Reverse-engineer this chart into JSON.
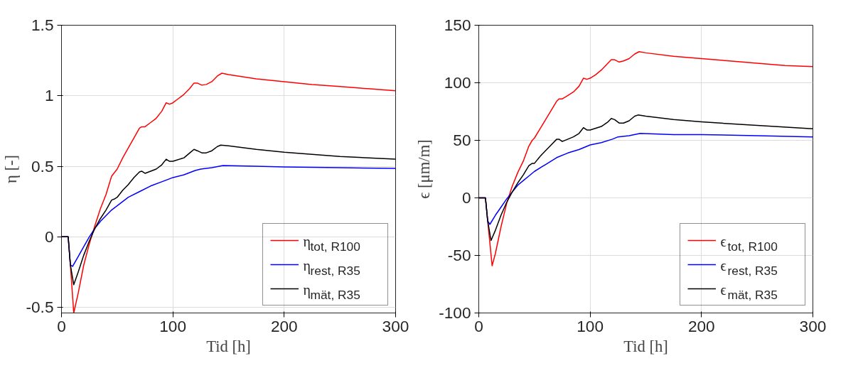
{
  "chart_data": [
    {
      "type": "line",
      "xlabel": "Tid [h]",
      "ylabel": "η [-]",
      "xlim": [
        0,
        300
      ],
      "ylim": [
        -0.54,
        1.5
      ],
      "xticks": [
        0,
        100,
        200,
        300
      ],
      "yticks": [
        -0.5,
        0,
        0.5,
        1,
        1.5
      ],
      "grid": true,
      "legend": "bottom right",
      "series": [
        {
          "name": "η$_{tot, R100}$",
          "color": "#ff0000",
          "x": [
            0,
            6,
            8,
            11,
            15,
            20,
            25,
            30,
            35,
            40,
            45,
            48,
            50,
            55,
            60,
            65,
            70,
            72,
            75,
            80,
            85,
            90,
            94,
            97,
            100,
            105,
            110,
            115,
            119,
            122,
            126,
            130,
            135,
            140,
            144,
            150,
            175,
            200,
            225,
            250,
            275,
            300
          ],
          "values": [
            0,
            0,
            -0.2,
            -0.54,
            -0.4,
            -0.2,
            -0.05,
            0.08,
            0.2,
            0.3,
            0.43,
            0.46,
            0.48,
            0.56,
            0.63,
            0.7,
            0.77,
            0.78,
            0.78,
            0.81,
            0.84,
            0.89,
            0.95,
            0.94,
            0.95,
            0.98,
            1.01,
            1.05,
            1.09,
            1.09,
            1.075,
            1.08,
            1.1,
            1.14,
            1.16,
            1.15,
            1.12,
            1.1,
            1.08,
            1.065,
            1.05,
            1.035
          ]
        },
        {
          "name": "η$_{rest, R35}$",
          "color": "#0000ff",
          "x": [
            0,
            6,
            8,
            10,
            15,
            20,
            25,
            30,
            35,
            40,
            45,
            50,
            60,
            70,
            80,
            90,
            100,
            110,
            120,
            125,
            135,
            145,
            175,
            200,
            250,
            300
          ],
          "values": [
            0,
            0,
            -0.2,
            -0.21,
            -0.14,
            -0.07,
            0,
            0.06,
            0.11,
            0.15,
            0.19,
            0.22,
            0.28,
            0.32,
            0.36,
            0.39,
            0.42,
            0.44,
            0.47,
            0.48,
            0.49,
            0.505,
            0.5,
            0.495,
            0.49,
            0.485
          ]
        },
        {
          "name": "η$_{mät, R35}$",
          "color": "#000000",
          "x": [
            0,
            6,
            8,
            11,
            15,
            20,
            25,
            30,
            35,
            40,
            45,
            48,
            50,
            55,
            60,
            65,
            70,
            72,
            75,
            80,
            85,
            90,
            94,
            97,
            100,
            110,
            116,
            119,
            122,
            126,
            130,
            135,
            140,
            143,
            150,
            175,
            200,
            250,
            300
          ],
          "values": [
            0,
            0,
            -0.2,
            -0.34,
            -0.25,
            -0.13,
            -0.03,
            0.06,
            0.13,
            0.19,
            0.26,
            0.27,
            0.28,
            0.33,
            0.37,
            0.42,
            0.46,
            0.465,
            0.45,
            0.465,
            0.48,
            0.51,
            0.55,
            0.535,
            0.535,
            0.56,
            0.6,
            0.62,
            0.61,
            0.595,
            0.595,
            0.61,
            0.64,
            0.65,
            0.645,
            0.62,
            0.6,
            0.57,
            0.55
          ]
        }
      ]
    },
    {
      "type": "line",
      "xlabel": "Tid [h]",
      "ylabel": "ϵ [μm/m]",
      "xlim": [
        0,
        300
      ],
      "ylim": [
        -100,
        150
      ],
      "xticks": [
        0,
        100,
        200,
        300
      ],
      "yticks": [
        -100,
        -50,
        0,
        50,
        100,
        150
      ],
      "grid": true,
      "legend": "bottom right",
      "series": [
        {
          "name": "ϵ$_{tot, R100}$",
          "color": "#ff0000",
          "x": [
            0,
            6,
            8,
            12,
            15,
            20,
            25,
            30,
            35,
            40,
            45,
            48,
            50,
            55,
            60,
            65,
            70,
            72,
            75,
            80,
            85,
            90,
            94,
            97,
            100,
            105,
            110,
            115,
            119,
            122,
            126,
            130,
            135,
            140,
            144,
            150,
            175,
            200,
            225,
            250,
            275,
            300
          ],
          "values": [
            0,
            0,
            -20,
            -59,
            -48,
            -25,
            -5,
            10,
            22,
            32,
            45,
            50,
            52,
            60,
            68,
            76,
            84,
            86,
            86,
            89,
            92,
            97,
            104,
            103,
            104,
            107,
            111,
            116,
            120,
            120,
            118,
            119,
            121,
            125,
            127,
            126,
            123,
            121,
            119,
            117,
            115,
            114
          ]
        },
        {
          "name": "ϵ$_{rest, R35}$",
          "color": "#0000ff",
          "x": [
            0,
            6,
            8,
            10,
            15,
            20,
            25,
            30,
            35,
            40,
            45,
            50,
            60,
            70,
            80,
            90,
            100,
            110,
            120,
            125,
            135,
            145,
            175,
            200,
            250,
            300
          ],
          "values": [
            0,
            0,
            -20,
            -23,
            -15,
            -8,
            -1,
            5,
            11,
            15,
            19,
            23,
            29,
            35,
            39,
            42,
            46,
            48,
            51,
            53,
            54,
            56,
            55,
            55,
            54,
            53
          ]
        },
        {
          "name": "ϵ$_{mät, R35}$",
          "color": "#000000",
          "x": [
            0,
            6,
            8,
            11,
            15,
            20,
            25,
            30,
            35,
            40,
            45,
            48,
            50,
            55,
            60,
            65,
            70,
            72,
            75,
            80,
            85,
            90,
            94,
            97,
            100,
            110,
            116,
            119,
            122,
            126,
            130,
            135,
            140,
            143,
            150,
            175,
            200,
            250,
            300
          ],
          "values": [
            0,
            0,
            -20,
            -37,
            -28,
            -15,
            -4,
            5,
            13,
            20,
            28,
            30,
            30,
            36,
            41,
            46,
            51,
            51,
            49,
            51,
            53,
            56,
            61,
            59,
            59,
            62,
            66,
            69,
            68,
            65,
            65,
            67,
            71,
            72,
            71,
            68,
            66,
            63,
            60
          ]
        }
      ]
    }
  ]
}
